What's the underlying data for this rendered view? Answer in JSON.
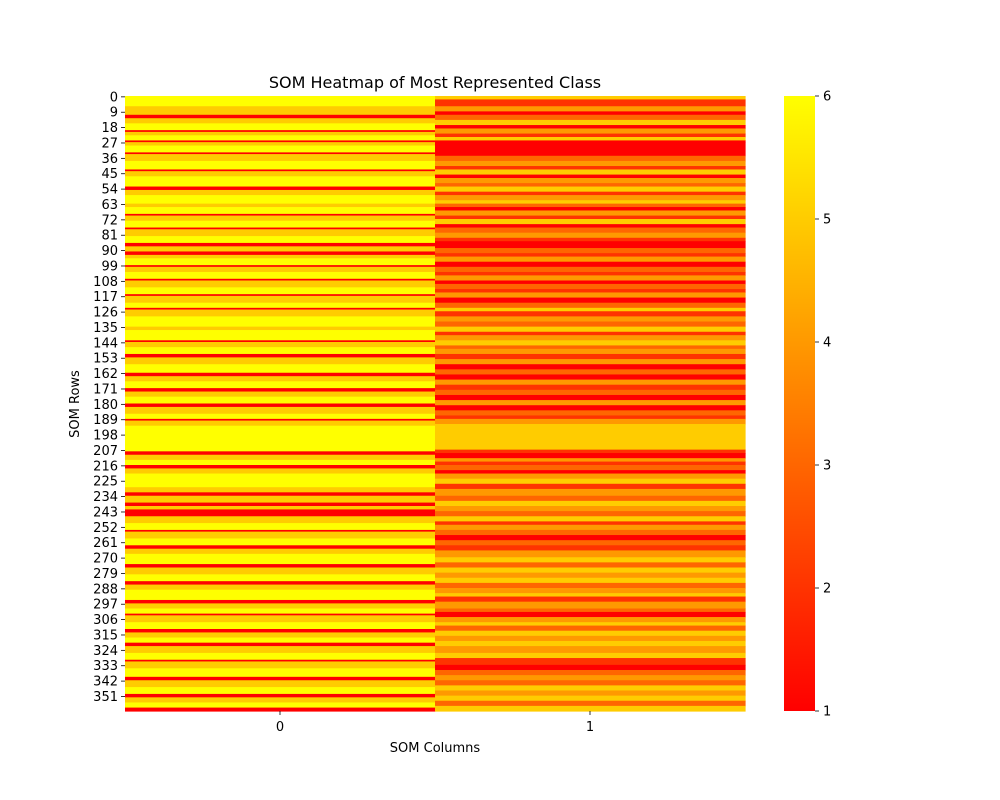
{
  "chart_data": {
    "type": "heatmap",
    "title": "SOM Heatmap of Most Represented Class",
    "xlabel": "SOM Columns",
    "ylabel": "SOM Rows",
    "x_categories": [
      "0",
      "1"
    ],
    "y_tick_labels": [
      "0",
      "9",
      "18",
      "27",
      "36",
      "45",
      "54",
      "63",
      "72",
      "81",
      "90",
      "99",
      "108",
      "117",
      "126",
      "135",
      "144",
      "153",
      "162",
      "171",
      "180",
      "189",
      "198",
      "207",
      "216",
      "225",
      "234",
      "243",
      "252",
      "261",
      "270",
      "279",
      "288",
      "297",
      "306",
      "315",
      "324",
      "333",
      "342",
      "351"
    ],
    "y_tick_values": [
      0,
      9,
      18,
      27,
      36,
      45,
      54,
      63,
      72,
      81,
      90,
      99,
      108,
      117,
      126,
      135,
      144,
      153,
      162,
      171,
      180,
      189,
      198,
      207,
      216,
      225,
      234,
      243,
      252,
      261,
      270,
      279,
      288,
      297,
      306,
      315,
      324,
      333,
      342,
      351
    ],
    "rows": 360,
    "value_range": [
      1,
      6
    ],
    "colormap": "autumn",
    "colormap_colors": [
      "#ff0000",
      "#ffff00"
    ],
    "colorbar": {
      "ticks": [
        "1",
        "2",
        "3",
        "4",
        "5",
        "6"
      ],
      "tick_values": [
        1,
        2,
        3,
        4,
        5,
        6
      ]
    },
    "column_0_bands": [
      [
        0,
        6,
        6
      ],
      [
        6,
        11,
        5
      ],
      [
        11,
        13,
        1
      ],
      [
        13,
        16,
        5
      ],
      [
        16,
        20,
        6
      ],
      [
        20,
        21,
        1
      ],
      [
        21,
        23,
        5
      ],
      [
        23,
        26,
        6
      ],
      [
        26,
        27,
        1
      ],
      [
        27,
        29,
        5
      ],
      [
        29,
        33,
        6
      ],
      [
        33,
        34,
        1
      ],
      [
        34,
        38,
        5
      ],
      [
        38,
        43,
        6
      ],
      [
        43,
        44,
        1
      ],
      [
        44,
        47,
        5
      ],
      [
        47,
        53,
        6
      ],
      [
        53,
        55,
        1
      ],
      [
        55,
        58,
        5
      ],
      [
        58,
        63,
        6
      ],
      [
        63,
        65,
        5
      ],
      [
        65,
        69,
        6
      ],
      [
        69,
        70,
        1
      ],
      [
        70,
        73,
        5
      ],
      [
        73,
        77,
        6
      ],
      [
        77,
        78,
        1
      ],
      [
        78,
        82,
        5
      ],
      [
        82,
        86,
        6
      ],
      [
        86,
        88,
        1
      ],
      [
        88,
        91,
        5
      ],
      [
        91,
        93,
        1
      ],
      [
        93,
        95,
        5
      ],
      [
        95,
        99,
        6
      ],
      [
        99,
        100,
        1
      ],
      [
        100,
        103,
        5
      ],
      [
        103,
        107,
        6
      ],
      [
        107,
        108,
        1
      ],
      [
        108,
        112,
        5
      ],
      [
        112,
        116,
        6
      ],
      [
        116,
        117,
        1
      ],
      [
        117,
        121,
        5
      ],
      [
        121,
        124,
        6
      ],
      [
        124,
        125,
        1
      ],
      [
        125,
        129,
        5
      ],
      [
        129,
        135,
        6
      ],
      [
        135,
        137,
        5
      ],
      [
        137,
        143,
        6
      ],
      [
        143,
        144,
        1
      ],
      [
        144,
        147,
        5
      ],
      [
        147,
        151,
        6
      ],
      [
        151,
        153,
        1
      ],
      [
        153,
        157,
        5
      ],
      [
        157,
        162,
        6
      ],
      [
        162,
        164,
        1
      ],
      [
        164,
        167,
        5
      ],
      [
        167,
        171,
        6
      ],
      [
        171,
        173,
        1
      ],
      [
        173,
        176,
        5
      ],
      [
        176,
        180,
        6
      ],
      [
        180,
        182,
        1
      ],
      [
        182,
        186,
        5
      ],
      [
        186,
        189,
        6
      ],
      [
        189,
        190,
        1
      ],
      [
        190,
        193,
        5
      ],
      [
        193,
        208,
        6
      ],
      [
        208,
        210,
        1
      ],
      [
        210,
        213,
        5
      ],
      [
        213,
        216,
        6
      ],
      [
        216,
        218,
        1
      ],
      [
        218,
        221,
        5
      ],
      [
        221,
        229,
        6
      ],
      [
        229,
        232,
        5
      ],
      [
        232,
        234,
        1
      ],
      [
        234,
        238,
        5
      ],
      [
        238,
        240,
        1
      ],
      [
        240,
        242,
        5
      ],
      [
        242,
        246,
        1
      ],
      [
        246,
        250,
        5
      ],
      [
        250,
        254,
        6
      ],
      [
        254,
        255,
        1
      ],
      [
        255,
        259,
        5
      ],
      [
        259,
        263,
        6
      ],
      [
        263,
        265,
        1
      ],
      [
        265,
        268,
        5
      ],
      [
        268,
        274,
        6
      ],
      [
        274,
        276,
        1
      ],
      [
        276,
        280,
        5
      ],
      [
        280,
        284,
        6
      ],
      [
        284,
        286,
        1
      ],
      [
        286,
        289,
        5
      ],
      [
        289,
        295,
        6
      ],
      [
        295,
        297,
        1
      ],
      [
        297,
        300,
        5
      ],
      [
        300,
        303,
        6
      ],
      [
        303,
        304,
        1
      ],
      [
        304,
        308,
        5
      ],
      [
        308,
        312,
        6
      ],
      [
        312,
        314,
        1
      ],
      [
        314,
        317,
        5
      ],
      [
        317,
        320,
        6
      ],
      [
        320,
        322,
        1
      ],
      [
        322,
        326,
        5
      ],
      [
        326,
        330,
        6
      ],
      [
        330,
        331,
        1
      ],
      [
        331,
        335,
        5
      ],
      [
        335,
        340,
        6
      ],
      [
        340,
        342,
        1
      ],
      [
        342,
        346,
        5
      ],
      [
        346,
        350,
        6
      ],
      [
        350,
        352,
        1
      ],
      [
        352,
        355,
        5
      ],
      [
        355,
        358,
        6
      ],
      [
        358,
        360,
        1
      ]
    ],
    "column_1_bands": [
      [
        0,
        2,
        5
      ],
      [
        2,
        6,
        2
      ],
      [
        6,
        9,
        4
      ],
      [
        9,
        11,
        1
      ],
      [
        11,
        14,
        3
      ],
      [
        14,
        17,
        5
      ],
      [
        17,
        19,
        1
      ],
      [
        19,
        22,
        4
      ],
      [
        22,
        24,
        2
      ],
      [
        24,
        26,
        5
      ],
      [
        26,
        27,
        1
      ],
      [
        27,
        35,
        1
      ],
      [
        35,
        38,
        3
      ],
      [
        38,
        41,
        4
      ],
      [
        41,
        43,
        2
      ],
      [
        43,
        46,
        5
      ],
      [
        46,
        48,
        1
      ],
      [
        48,
        51,
        4
      ],
      [
        51,
        53,
        3
      ],
      [
        53,
        56,
        5
      ],
      [
        56,
        58,
        2
      ],
      [
        58,
        61,
        4
      ],
      [
        61,
        63,
        5
      ],
      [
        63,
        65,
        3
      ],
      [
        65,
        67,
        1
      ],
      [
        67,
        70,
        4
      ],
      [
        70,
        72,
        2
      ],
      [
        72,
        75,
        5
      ],
      [
        75,
        77,
        1
      ],
      [
        77,
        80,
        3
      ],
      [
        80,
        83,
        4
      ],
      [
        83,
        85,
        2
      ],
      [
        85,
        89,
        1
      ],
      [
        89,
        92,
        3
      ],
      [
        92,
        94,
        2
      ],
      [
        94,
        97,
        4
      ],
      [
        97,
        100,
        1
      ],
      [
        100,
        103,
        3
      ],
      [
        103,
        105,
        2
      ],
      [
        105,
        108,
        4
      ],
      [
        108,
        110,
        1
      ],
      [
        110,
        113,
        3
      ],
      [
        113,
        115,
        2
      ],
      [
        115,
        118,
        4
      ],
      [
        118,
        121,
        1
      ],
      [
        121,
        124,
        3
      ],
      [
        124,
        126,
        5
      ],
      [
        126,
        129,
        2
      ],
      [
        129,
        132,
        4
      ],
      [
        132,
        135,
        3
      ],
      [
        135,
        138,
        5
      ],
      [
        138,
        140,
        2
      ],
      [
        140,
        143,
        4
      ],
      [
        143,
        146,
        5
      ],
      [
        146,
        148,
        3
      ],
      [
        148,
        151,
        4
      ],
      [
        151,
        154,
        2
      ],
      [
        154,
        157,
        4
      ],
      [
        157,
        160,
        1
      ],
      [
        160,
        163,
        3
      ],
      [
        163,
        166,
        1
      ],
      [
        166,
        169,
        4
      ],
      [
        169,
        172,
        2
      ],
      [
        172,
        175,
        3
      ],
      [
        175,
        178,
        1
      ],
      [
        178,
        181,
        4
      ],
      [
        181,
        184,
        1
      ],
      [
        184,
        187,
        3
      ],
      [
        187,
        189,
        2
      ],
      [
        189,
        192,
        4
      ],
      [
        192,
        207,
        5
      ],
      [
        207,
        209,
        2
      ],
      [
        209,
        212,
        1
      ],
      [
        212,
        214,
        4
      ],
      [
        214,
        216,
        2
      ],
      [
        216,
        219,
        3
      ],
      [
        219,
        221,
        1
      ],
      [
        221,
        224,
        4
      ],
      [
        224,
        227,
        5
      ],
      [
        227,
        230,
        2
      ],
      [
        230,
        234,
        4
      ],
      [
        234,
        237,
        3
      ],
      [
        237,
        240,
        5
      ],
      [
        240,
        243,
        4
      ],
      [
        243,
        246,
        3
      ],
      [
        246,
        249,
        5
      ],
      [
        249,
        251,
        2
      ],
      [
        251,
        254,
        4
      ],
      [
        254,
        257,
        3
      ],
      [
        257,
        260,
        1
      ],
      [
        260,
        263,
        3
      ],
      [
        263,
        266,
        2
      ],
      [
        266,
        270,
        4
      ],
      [
        270,
        273,
        5
      ],
      [
        273,
        276,
        3
      ],
      [
        276,
        279,
        5
      ],
      [
        279,
        282,
        4
      ],
      [
        282,
        285,
        5
      ],
      [
        285,
        288,
        3
      ],
      [
        288,
        291,
        4
      ],
      [
        291,
        293,
        5
      ],
      [
        293,
        296,
        2
      ],
      [
        296,
        300,
        4
      ],
      [
        300,
        302,
        3
      ],
      [
        302,
        305,
        1
      ],
      [
        305,
        308,
        4
      ],
      [
        308,
        310,
        5
      ],
      [
        310,
        313,
        3
      ],
      [
        313,
        316,
        5
      ],
      [
        316,
        319,
        4
      ],
      [
        319,
        322,
        5
      ],
      [
        322,
        326,
        4
      ],
      [
        326,
        329,
        5
      ],
      [
        329,
        333,
        2
      ],
      [
        333,
        336,
        1
      ],
      [
        336,
        339,
        3
      ],
      [
        339,
        342,
        4
      ],
      [
        342,
        345,
        3
      ],
      [
        345,
        348,
        5
      ],
      [
        348,
        351,
        4
      ],
      [
        351,
        354,
        5
      ],
      [
        354,
        357,
        3
      ],
      [
        357,
        360,
        5
      ]
    ]
  }
}
